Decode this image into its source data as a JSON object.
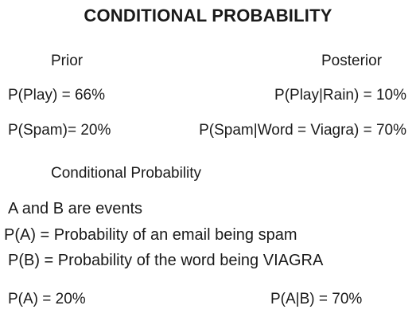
{
  "title": "CONDITIONAL PROBABILITY",
  "prior": {
    "heading": "Prior",
    "items": [
      "P(Play)  = 66%",
      "P(Spam)= 20%"
    ]
  },
  "posterior": {
    "heading": "Posterior",
    "items": [
      "P(Play|Rain)  = 10%",
      "P(Spam|Word = Viagra)  = 70%"
    ]
  },
  "conditional": {
    "heading": "Conditional Probability",
    "lines": [
      "A and B are events",
      "P(A) = Probability of an email being spam",
      "P(B) = Probability of the word being VIAGRA"
    ],
    "left_eq": "P(A)  = 20%",
    "right_eq": "P(A|B)  = 70%"
  }
}
